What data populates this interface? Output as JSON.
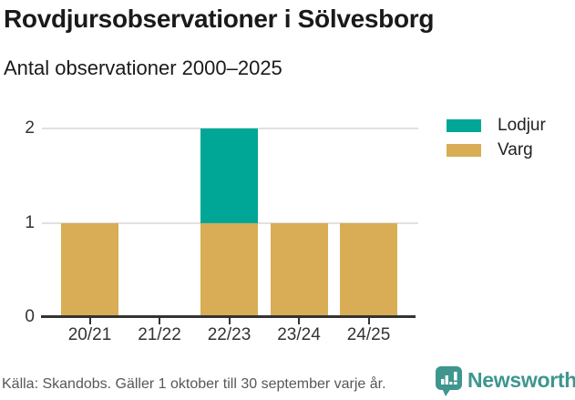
{
  "chart_data": {
    "type": "bar",
    "stacked": true,
    "title": "Rovdjursobservationer i Sölvesborg",
    "subtitle": "Antal observationer 2000–2025",
    "categories": [
      "20/21",
      "21/22",
      "22/23",
      "23/24",
      "24/25"
    ],
    "series": [
      {
        "name": "Lodjur",
        "color": "#00A796",
        "values": [
          0,
          0,
          1,
          0,
          0
        ]
      },
      {
        "name": "Varg",
        "color": "#D9AD55",
        "values": [
          1,
          0,
          1,
          1,
          1
        ]
      }
    ],
    "xlabel": "",
    "ylabel": "",
    "ylim": [
      0,
      2
    ],
    "yticks": [
      0,
      1,
      2
    ],
    "grid": true,
    "legend_position": "top-right"
  },
  "footer": {
    "source": "Källa: Skandobs. Gäller 1 oktober till 30 september varje år.",
    "brand": "Newsworthy",
    "brand_color": "#3E968F"
  }
}
